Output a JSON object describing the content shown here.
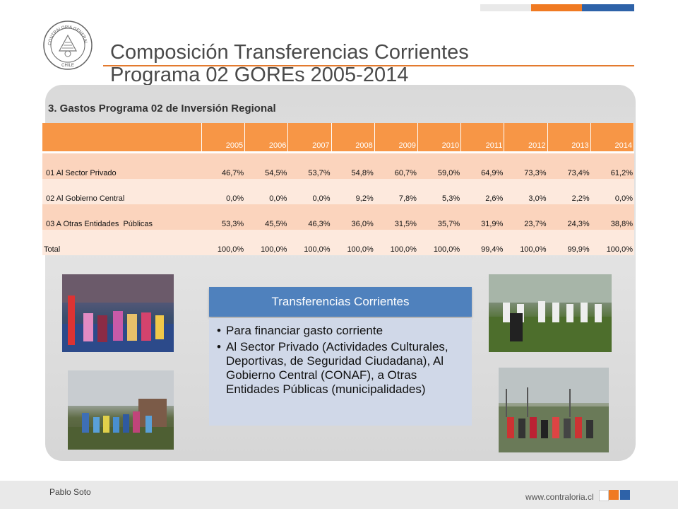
{
  "header": {
    "title_line1": "Composición Transferencias Corrientes",
    "title_line2": "Programa 02 GOREs 2005-2014"
  },
  "subtitle": "3. Gastos Programa 02 de Inversión Regional",
  "table": {
    "years": [
      "2005",
      "2006",
      "2007",
      "2008",
      "2009",
      "2010",
      "2011",
      "2012",
      "2013",
      "2014"
    ],
    "rows": [
      {
        "label": "01 Al Sector Privado",
        "values": [
          "46,7%",
          "54,5%",
          "53,7%",
          "54,8%",
          "60,7%",
          "59,0%",
          "64,9%",
          "73,3%",
          "73,4%",
          "61,2%"
        ]
      },
      {
        "label": "02 Al Gobierno Central",
        "values": [
          "0,0%",
          "0,0%",
          "0,0%",
          "9,2%",
          "7,8%",
          "5,3%",
          "2,6%",
          "3,0%",
          "2,2%",
          "0,0%"
        ]
      },
      {
        "label": "03 A Otras Entidades  Públicas",
        "values": [
          "53,3%",
          "45,5%",
          "46,3%",
          "36,0%",
          "31,5%",
          "35,7%",
          "31,9%",
          "23,7%",
          "24,3%",
          "38,8%"
        ]
      },
      {
        "label": "Total",
        "values": [
          "100,0%",
          "100,0%",
          "100,0%",
          "100,0%",
          "100,0%",
          "100,0%",
          "99,4%",
          "100,0%",
          "99,9%",
          "100,0%"
        ]
      }
    ]
  },
  "callout": {
    "header": "Transferencias Corrientes",
    "bullets": [
      "Para financiar gasto corriente",
      "Al Sector Privado (Actividades Culturales, Deportivas, de Seguridad Ciudadana), Al Gobierno Central (CONAF), a Otras Entidades Públicas (municipalidades)"
    ]
  },
  "footer": {
    "author": "Pablo Soto",
    "url": "www.contraloria.cl"
  },
  "logo": {
    "text": "CONTRALORIA GENERAL DE LA REPUBLICA CHILE"
  },
  "colors": {
    "accent_orange": "#f79646",
    "accent_blue": "#4f81bd",
    "brand_orange": "#f07a22",
    "brand_blue": "#2e62a8"
  }
}
